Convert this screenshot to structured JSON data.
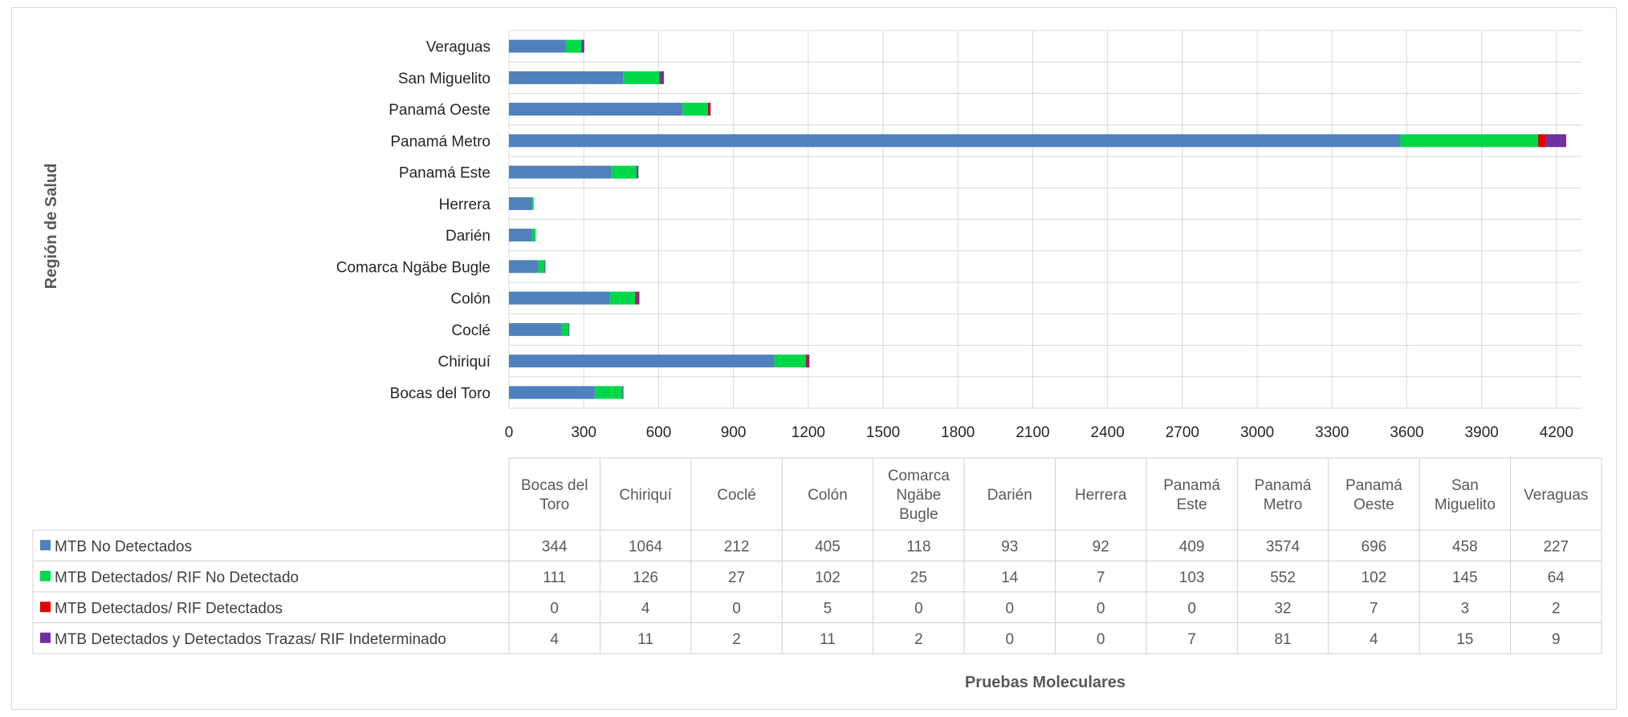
{
  "chart_data": {
    "type": "bar",
    "orientation": "horizontal",
    "stacked": true,
    "title": "",
    "ylabel": "Región de Salud",
    "xlabel": "Pruebas Moleculares",
    "xlim": [
      0,
      4300
    ],
    "x_ticks": [
      0,
      300,
      600,
      900,
      1200,
      1500,
      1800,
      2100,
      2400,
      2700,
      3000,
      3300,
      3600,
      3900,
      4200
    ],
    "grid": true,
    "legend_position": "data table below chart",
    "categories": [
      "Bocas del Toro",
      "Chiriquí",
      "Coclé",
      "Colón",
      "Comarca Ngäbe Bugle",
      "Darién",
      "Herrera",
      "Panamá Este",
      "Panamá Metro",
      "Panamá Oeste",
      "San Miguelito",
      "Veraguas"
    ],
    "series": [
      {
        "name": "MTB No Detectados",
        "color": "#4f81bd",
        "values": [
          344,
          1064,
          212,
          405,
          118,
          93,
          92,
          409,
          3574,
          696,
          458,
          227
        ]
      },
      {
        "name": "MTB Detectados/ RIF No Detectado",
        "color": "#00d84a",
        "values": [
          111,
          126,
          27,
          102,
          25,
          14,
          7,
          103,
          552,
          102,
          145,
          64
        ]
      },
      {
        "name": "MTB Detectados/ RIF Detectados",
        "color": "#e00000",
        "values": [
          0,
          4,
          0,
          5,
          0,
          0,
          0,
          0,
          32,
          7,
          3,
          2
        ]
      },
      {
        "name": "MTB Detectados y Detectados Trazas/ RIF Indeterminado",
        "color": "#7030a0",
        "values": [
          4,
          11,
          2,
          11,
          2,
          0,
          0,
          7,
          81,
          4,
          15,
          9
        ]
      }
    ],
    "table_headers": [
      "Bocas del Toro",
      "Chiriquí",
      "Coclé",
      "Colón",
      "Comarca Ngäbe Bugle",
      "Darién",
      "Herrera",
      "Panamá Este",
      "Panamá Metro",
      "Panamá Oeste",
      "San Miguelito",
      "Veraguas"
    ]
  }
}
